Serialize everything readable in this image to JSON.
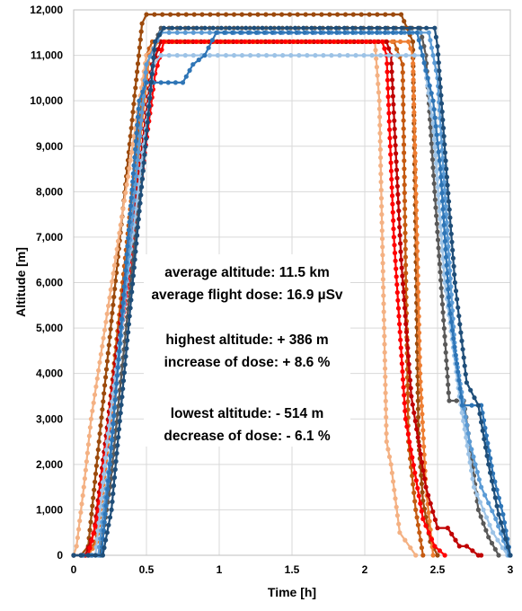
{
  "chart_data": {
    "type": "line",
    "title": "",
    "xlabel": "Time [h]",
    "ylabel": "Altitude [m]",
    "xlim": [
      0,
      3
    ],
    "ylim": [
      0,
      12000
    ],
    "grid": true,
    "legend": "none",
    "x_ticks": [
      {
        "value": 0,
        "label": "0"
      },
      {
        "value": 0.5,
        "label": "0.5"
      },
      {
        "value": 1,
        "label": "1"
      },
      {
        "value": 1.5,
        "label": "1.5"
      },
      {
        "value": 2,
        "label": "2"
      },
      {
        "value": 2.5,
        "label": "2.5"
      },
      {
        "value": 3,
        "label": "3"
      }
    ],
    "y_ticks": [
      {
        "value": 0,
        "label": "0"
      },
      {
        "value": 1000,
        "label": "1,000"
      },
      {
        "value": 2000,
        "label": "2,000"
      },
      {
        "value": 3000,
        "label": "3,000"
      },
      {
        "value": 4000,
        "label": "4,000"
      },
      {
        "value": 5000,
        "label": "5,000"
      },
      {
        "value": 6000,
        "label": "6,000"
      },
      {
        "value": 7000,
        "label": "7,000"
      },
      {
        "value": 8000,
        "label": "8,000"
      },
      {
        "value": 9000,
        "label": "9,000"
      },
      {
        "value": 10000,
        "label": "10,000"
      },
      {
        "value": 11000,
        "label": "11,000"
      },
      {
        "value": 12000,
        "label": "12,000"
      }
    ],
    "annotations": [
      "average  altitude: 11.5 km",
      "average flight dose: 16.9 µSv",
      "highest altitude: + 386 m",
      "increase of dose: + 8.6 %",
      "lowest altitude: - 514 m",
      "decrease of dose: - 6.1 %"
    ],
    "series": [
      {
        "color": "#9c4a0c",
        "x": [
          0.0,
          0.05,
          0.1,
          0.47,
          0.5,
          2.25,
          2.33,
          2.37,
          2.4,
          2.45,
          2.5
        ],
        "y": [
          0,
          0,
          200,
          11700,
          11900,
          11900,
          11300,
          2500,
          1200,
          300,
          0
        ]
      },
      {
        "color": "#c55a11",
        "x": [
          0.0,
          0.08,
          0.15,
          0.5,
          0.54,
          2.2,
          2.26,
          2.3,
          2.35,
          2.4
        ],
        "y": [
          0,
          0,
          300,
          11000,
          11300,
          11300,
          10800,
          2500,
          1000,
          0
        ]
      },
      {
        "color": "#f4b183",
        "x": [
          0.0,
          0.02,
          0.07,
          0.12,
          0.5,
          0.58,
          2.07,
          2.1,
          2.15,
          2.18,
          2.24,
          2.35
        ],
        "y": [
          0,
          200,
          1500,
          3000,
          11000,
          11300,
          11300,
          10000,
          2500,
          2000,
          500,
          0
        ]
      },
      {
        "color": "#ed7d31",
        "x": [
          0.0,
          0.1,
          0.16,
          0.52,
          0.58,
          2.3,
          2.33,
          2.38,
          2.42,
          2.47
        ],
        "y": [
          0,
          0,
          300,
          11000,
          11300,
          11300,
          11000,
          4000,
          1500,
          0
        ]
      },
      {
        "color": "#c00000",
        "x": [
          0.0,
          0.08,
          0.14,
          0.54,
          0.6,
          2.15,
          2.18,
          2.25,
          2.32,
          2.42,
          2.5,
          2.57,
          2.65,
          2.7,
          2.78,
          2.8
        ],
        "y": [
          0,
          0,
          500,
          10800,
          11300,
          11300,
          11000,
          6500,
          3500,
          1500,
          600,
          600,
          200,
          200,
          0,
          0
        ]
      },
      {
        "color": "#ff0000",
        "x": [
          0.0,
          0.1,
          0.16,
          0.56,
          0.62,
          2.12,
          2.15,
          2.2,
          2.28,
          2.4,
          2.48,
          2.55
        ],
        "y": [
          0,
          0,
          800,
          10600,
          11300,
          11300,
          11000,
          7000,
          3000,
          800,
          200,
          0
        ]
      },
      {
        "color": "#595959",
        "x": [
          0.0,
          0.18,
          0.25,
          0.56,
          0.6,
          2.38,
          2.42,
          2.48,
          2.58,
          2.68,
          2.72,
          2.78,
          2.85,
          2.92
        ],
        "y": [
          0,
          0,
          1500,
          11300,
          11600,
          11600,
          11000,
          8000,
          3400,
          3400,
          2500,
          1000,
          400,
          0
        ]
      },
      {
        "color": "#9dc3e6",
        "x": [
          0.0,
          0.15,
          0.23,
          0.55,
          0.6,
          2.05,
          2.4,
          2.47,
          2.55,
          2.65,
          2.75,
          2.88,
          2.98
        ],
        "y": [
          0,
          0,
          2500,
          10800,
          11000,
          11000,
          11000,
          9500,
          6000,
          3500,
          1500,
          500,
          0
        ]
      },
      {
        "color": "#5b9bd5",
        "x": [
          0.0,
          0.17,
          0.25,
          0.5,
          0.6,
          2.44,
          2.5,
          2.56,
          2.62,
          2.72,
          2.8,
          2.9,
          2.99
        ],
        "y": [
          0,
          0,
          2200,
          10800,
          11500,
          11500,
          10500,
          7500,
          4500,
          2500,
          1500,
          800,
          0
        ]
      },
      {
        "color": "#2e75b6",
        "x": [
          0.0,
          0.19,
          0.25,
          0.45,
          0.5,
          0.75,
          0.82,
          0.9,
          0.98,
          1.2,
          2.36,
          2.47,
          2.52,
          2.58,
          2.67,
          2.8,
          2.88,
          2.95,
          3.0
        ],
        "y": [
          0,
          0,
          2000,
          10000,
          10400,
          10400,
          10800,
          11000,
          11500,
          11500,
          11500,
          10000,
          8500,
          5500,
          3300,
          3300,
          1800,
          900,
          0
        ]
      },
      {
        "color": "#1f4e79",
        "x": [
          0.0,
          0.2,
          0.26,
          0.56,
          0.62,
          2.48,
          2.5,
          2.56,
          2.62,
          2.7,
          2.78,
          2.85,
          2.92,
          3.0
        ],
        "y": [
          0,
          0,
          1000,
          11300,
          11600,
          11600,
          11200,
          8500,
          6000,
          3800,
          3300,
          2000,
          900,
          0
        ]
      }
    ]
  }
}
